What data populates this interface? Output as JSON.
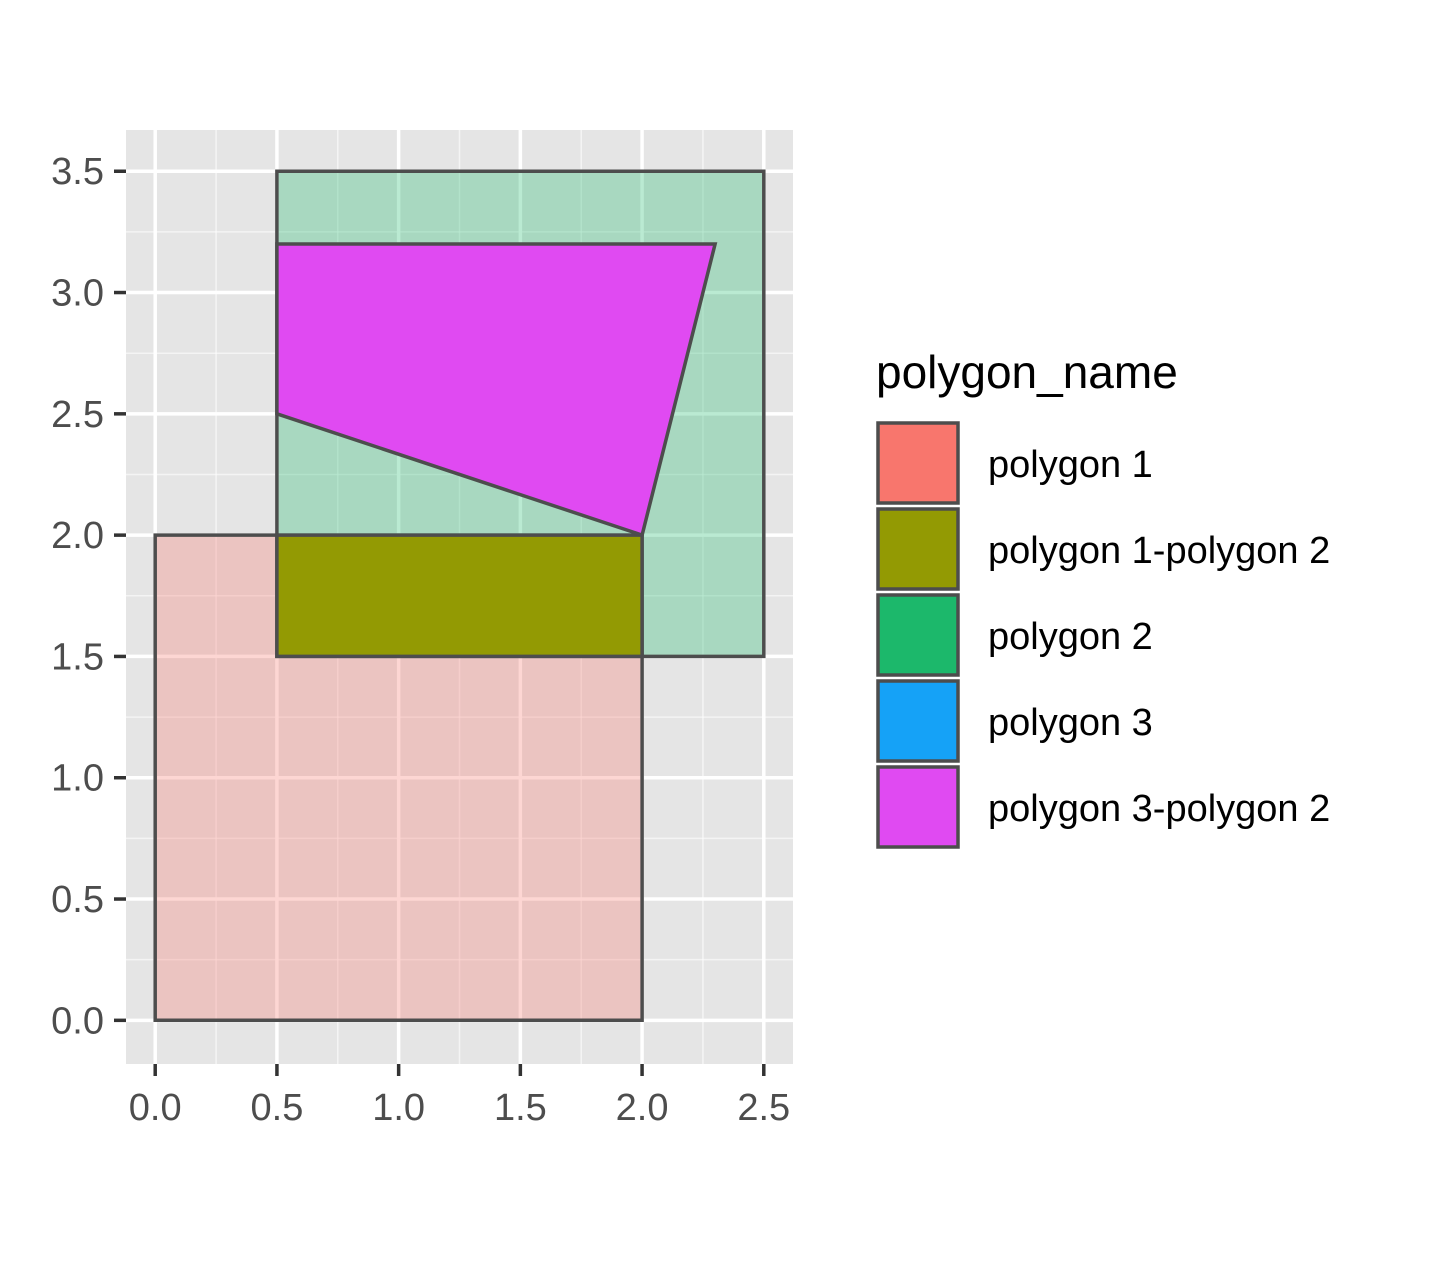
{
  "chart_data": {
    "type": "polygon",
    "title": "",
    "xlabel": "",
    "ylabel": "",
    "xlim": [
      -0.12,
      2.62
    ],
    "ylim": [
      -0.18,
      3.67
    ],
    "x_ticks": [
      0.0,
      0.5,
      1.0,
      1.5,
      2.0,
      2.5
    ],
    "x_tick_labels": [
      "0.0",
      "0.5",
      "1.0",
      "1.5",
      "2.0",
      "2.5"
    ],
    "y_ticks": [
      0.0,
      0.5,
      1.0,
      1.5,
      2.0,
      2.5,
      3.0,
      3.5
    ],
    "y_tick_labels": [
      "0.0",
      "0.5",
      "1.0",
      "1.5",
      "2.0",
      "2.5",
      "3.0",
      "3.5"
    ],
    "grid": true,
    "background": "#e5e5e5",
    "grid_color": "#ffffff",
    "outline_color": "#4d4d4d",
    "legend": {
      "title": "polygon_name",
      "placement": "right",
      "entries": [
        {
          "label": "polygon 1",
          "color": "#f8766d"
        },
        {
          "label": "polygon 1-polygon 2",
          "color": "#939a03"
        },
        {
          "label": "polygon 2",
          "color": "#1cb86b"
        },
        {
          "label": "polygon 3",
          "color": "#15a2f7"
        },
        {
          "label": "polygon 3-polygon 2",
          "color": "#e04af2"
        }
      ]
    },
    "polygons": [
      {
        "name": "polygon 1",
        "color": "#f8766d",
        "opacity": 0.3,
        "points": [
          [
            0,
            0
          ],
          [
            2,
            0
          ],
          [
            2,
            2
          ],
          [
            0,
            2
          ]
        ]
      },
      {
        "name": "polygon 2",
        "color": "#1cb86b",
        "opacity": 0.3,
        "points": [
          [
            0.5,
            1.5
          ],
          [
            2.5,
            1.5
          ],
          [
            2.5,
            3.5
          ],
          [
            0.5,
            3.5
          ]
        ]
      },
      {
        "name": "polygon 1-polygon 2",
        "color": "#939a03",
        "opacity": 1,
        "points": [
          [
            0.5,
            1.5
          ],
          [
            2,
            1.5
          ],
          [
            2,
            2
          ],
          [
            0.5,
            2
          ]
        ]
      },
      {
        "name": "polygon 3-polygon 2",
        "color": "#e04af2",
        "opacity": 1,
        "points": [
          [
            0.5,
            2.5
          ],
          [
            2,
            2
          ],
          [
            2.3,
            3.2
          ],
          [
            0.5,
            3.2
          ]
        ]
      }
    ]
  }
}
